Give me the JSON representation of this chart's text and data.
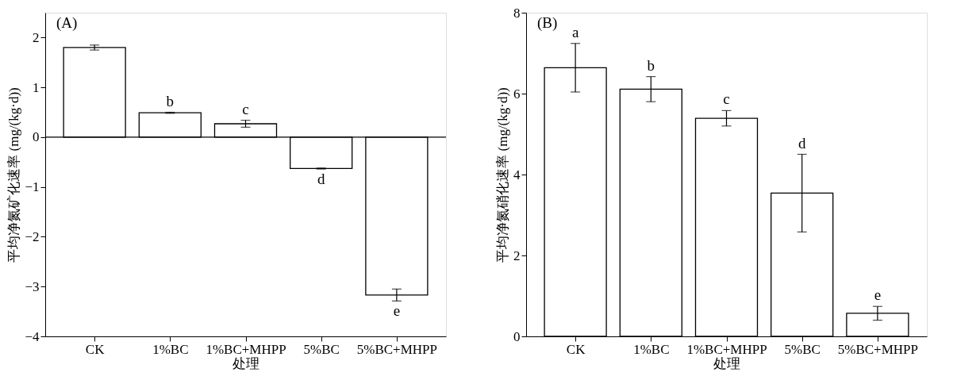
{
  "chart_data": [
    {
      "type": "bar",
      "title": "(A)",
      "xlabel": "处理",
      "ylabel": "平均净氮矿化速率 (mg/(kg·d))",
      "categories": [
        "CK",
        "1%BC",
        "1%BC+MHPP",
        "5%BC",
        "5%BC+MHPP"
      ],
      "values": [
        1.8,
        0.49,
        0.27,
        -0.63,
        -3.17
      ],
      "errors": [
        0.05,
        0.01,
        0.07,
        0.01,
        0.12
      ],
      "color": "#ffffff",
      "ylim": [
        -4,
        2.5
      ],
      "yticks": [
        -4,
        -3,
        -2,
        -1,
        0,
        1,
        2
      ],
      "grid": false,
      "ref_lines": [
        {
          "axis": "y",
          "value": 0
        }
      ],
      "value_labels": [
        null,
        "b",
        "c",
        "d",
        "e"
      ]
    },
    {
      "type": "bar",
      "title": "(B)",
      "xlabel": "处理",
      "ylabel": "平均净氮硝化速率 (mg/(kg·d))",
      "categories": [
        "CK",
        "1%BC",
        "1%BC+MHPP",
        "5%BC",
        "5%BC+MHPP"
      ],
      "values": [
        6.64,
        6.11,
        5.39,
        3.54,
        0.57
      ],
      "errors": [
        0.6,
        0.31,
        0.19,
        0.96,
        0.17
      ],
      "color": "#ffffff",
      "ylim": [
        0,
        8
      ],
      "yticks": [
        0,
        2,
        4,
        6,
        8
      ],
      "grid": false,
      "value_labels": [
        "a",
        "b",
        "c",
        "d",
        "e"
      ]
    }
  ]
}
